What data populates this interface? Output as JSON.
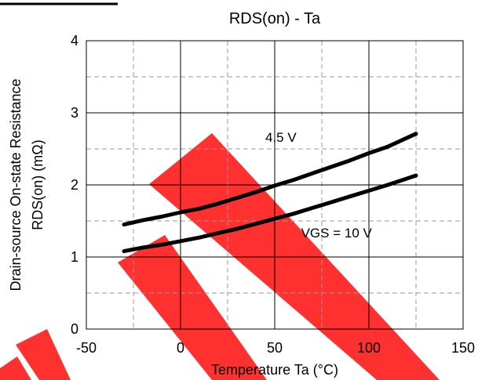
{
  "chart_data": {
    "type": "line",
    "title": "RDS(on) - Ta",
    "xlabel": "Temperature Ta (°C)",
    "ylabel_line1": "Drain-source On-state Resistance",
    "ylabel_line2": "RDS(on) (mΩ)",
    "xlim": [
      -50,
      150
    ],
    "ylim": [
      0,
      4
    ],
    "x_ticks": [
      "-50",
      "0",
      "50",
      "100",
      "150"
    ],
    "y_ticks": [
      "0",
      "1",
      "2",
      "3",
      "4"
    ],
    "grid": "major solid, minor dashed",
    "series": [
      {
        "name": "4.5 V",
        "x": [
          -30,
          -20,
          -10,
          0,
          10,
          20,
          30,
          40,
          50,
          60,
          70,
          80,
          90,
          100,
          110,
          125
        ],
        "y": [
          1.45,
          1.51,
          1.56,
          1.62,
          1.67,
          1.74,
          1.82,
          1.9,
          1.99,
          2.07,
          2.16,
          2.25,
          2.34,
          2.44,
          2.53,
          2.71
        ]
      },
      {
        "name": "VGS = 10 V",
        "x": [
          -30,
          -20,
          -10,
          0,
          10,
          20,
          30,
          40,
          50,
          60,
          70,
          80,
          90,
          100,
          110,
          125
        ],
        "y": [
          1.08,
          1.13,
          1.17,
          1.22,
          1.27,
          1.33,
          1.39,
          1.46,
          1.53,
          1.6,
          1.68,
          1.76,
          1.84,
          1.92,
          2.0,
          2.13
        ]
      }
    ],
    "annotations": [
      "4.5 V",
      "VGS = 10 V"
    ]
  },
  "colors": {
    "line": "#000000",
    "grid": "#999999",
    "watermark": "#ff0000"
  },
  "watermark_marks": [
    "X"
  ]
}
